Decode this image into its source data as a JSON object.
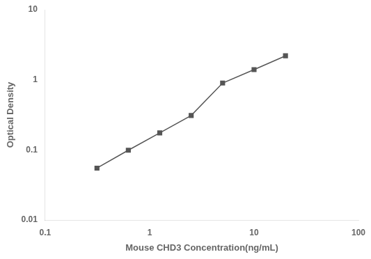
{
  "chart_data": {
    "type": "line",
    "x": [
      0.313,
      0.625,
      1.25,
      2.5,
      5.0,
      10.0,
      20.0
    ],
    "values": [
      0.055,
      0.099,
      0.175,
      0.31,
      0.9,
      1.4,
      2.2
    ],
    "xlabel": "Mouse CHD3 Concentration(ng/mL)",
    "ylabel": "Optical Density",
    "xlim": [
      0.1,
      100
    ],
    "ylim": [
      0.01,
      10
    ],
    "xticks": [
      0.1,
      1,
      10,
      100
    ],
    "yticks": [
      0.01,
      0.1,
      1,
      10
    ],
    "log": true,
    "grid": false,
    "color": "#555555",
    "marker": "square"
  }
}
